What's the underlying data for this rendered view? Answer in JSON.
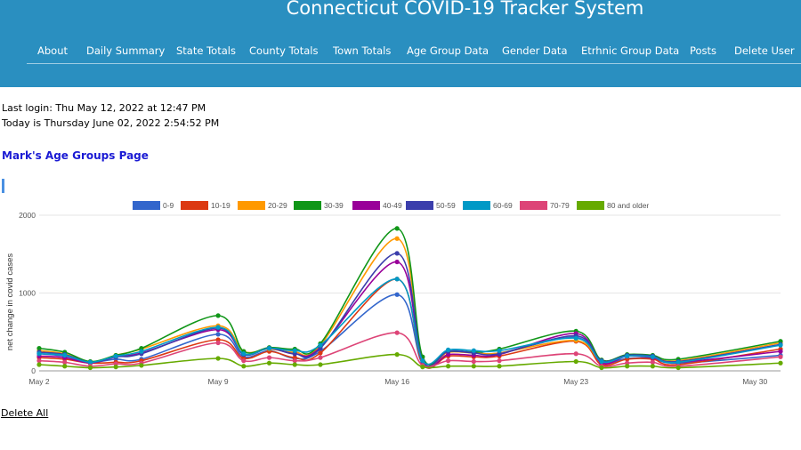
{
  "header": {
    "title": "Connecticut COVID-19 Tracker System",
    "nav": [
      {
        "label": "About"
      },
      {
        "label": "Daily Summary"
      },
      {
        "label": "State Totals"
      },
      {
        "label": "County Totals"
      },
      {
        "label": "Town Totals"
      },
      {
        "label": "Age Group Data"
      },
      {
        "label": "Gender Data"
      },
      {
        "label": "Etrhnic Group Data"
      },
      {
        "label": "Posts"
      },
      {
        "label": "Delete User"
      }
    ],
    "colors": {
      "background": "#2a8fc0",
      "text": "#ffffff"
    }
  },
  "info": {
    "last_login": "Last login: Thu May 12, 2022 at 12:47 PM",
    "today": "Today is Thursday June 02, 2022 2:54:52 PM"
  },
  "page_heading": "Mark's Age Groups Page",
  "delete_all_label": "Delete All",
  "chart_data": {
    "type": "line",
    "title": "",
    "xlabel": "",
    "ylabel": "net change in covid cases",
    "xlim": [
      "2022-05-02",
      "2022-05-31"
    ],
    "ylim": [
      0,
      2000
    ],
    "yticks": [
      0,
      1000,
      2000
    ],
    "xticks": [
      {
        "label": "May 2",
        "date": "2022-05-02"
      },
      {
        "label": "May 9",
        "date": "2022-05-09"
      },
      {
        "label": "May 16",
        "date": "2022-05-16"
      },
      {
        "label": "May 23",
        "date": "2022-05-23"
      },
      {
        "label": "May 30",
        "date": "2022-05-30"
      }
    ],
    "grid": true,
    "legend_position": "top",
    "x": [
      "2022-05-02",
      "2022-05-03",
      "2022-05-04",
      "2022-05-05",
      "2022-05-06",
      "2022-05-09",
      "2022-05-10",
      "2022-05-11",
      "2022-05-12",
      "2022-05-13",
      "2022-05-16",
      "2022-05-17",
      "2022-05-18",
      "2022-05-19",
      "2022-05-20",
      "2022-05-23",
      "2022-05-24",
      "2022-05-25",
      "2022-05-26",
      "2022-05-27",
      "2022-05-31"
    ],
    "series": [
      {
        "name": "0-9",
        "color": "#3366cc",
        "values": [
          220,
          190,
          110,
          150,
          150,
          470,
          180,
          260,
          160,
          250,
          980,
          90,
          250,
          240,
          230,
          430,
          110,
          160,
          160,
          100,
          200
        ]
      },
      {
        "name": "10-19",
        "color": "#dc3912",
        "values": [
          170,
          150,
          100,
          110,
          130,
          400,
          160,
          250,
          170,
          230,
          1180,
          90,
          190,
          180,
          190,
          380,
          80,
          150,
          150,
          80,
          280
        ]
      },
      {
        "name": "20-29",
        "color": "#ff9900",
        "values": [
          260,
          220,
          110,
          200,
          280,
          580,
          250,
          280,
          240,
          330,
          1700,
          140,
          240,
          230,
          230,
          390,
          120,
          200,
          190,
          130,
          360
        ]
      },
      {
        "name": "30-39",
        "color": "#109618",
        "values": [
          290,
          240,
          120,
          200,
          290,
          710,
          250,
          300,
          280,
          350,
          1830,
          180,
          250,
          240,
          280,
          510,
          140,
          210,
          200,
          150,
          380
        ]
      },
      {
        "name": "40-49",
        "color": "#990099",
        "values": [
          190,
          170,
          100,
          180,
          230,
          530,
          210,
          290,
          220,
          300,
          1400,
          110,
          210,
          200,
          210,
          480,
          100,
          190,
          170,
          110,
          250
        ]
      },
      {
        "name": "50-59",
        "color": "#3b3eac",
        "values": [
          240,
          210,
          110,
          180,
          220,
          550,
          210,
          290,
          220,
          290,
          1510,
          130,
          250,
          230,
          220,
          450,
          130,
          200,
          190,
          120,
          340
        ]
      },
      {
        "name": "60-69",
        "color": "#0099c6",
        "values": [
          220,
          200,
          110,
          190,
          250,
          560,
          220,
          290,
          260,
          330,
          1180,
          130,
          270,
          260,
          260,
          420,
          120,
          190,
          180,
          110,
          330
        ]
      },
      {
        "name": "70-79",
        "color": "#dd4477",
        "values": [
          130,
          110,
          60,
          90,
          100,
          360,
          130,
          170,
          130,
          170,
          490,
          70,
          130,
          120,
          130,
          220,
          60,
          100,
          110,
          60,
          180
        ]
      },
      {
        "name": "80 and older",
        "color": "#66aa00",
        "values": [
          80,
          60,
          40,
          50,
          70,
          160,
          60,
          100,
          80,
          80,
          210,
          50,
          60,
          60,
          60,
          120,
          40,
          60,
          60,
          40,
          100
        ]
      }
    ]
  }
}
